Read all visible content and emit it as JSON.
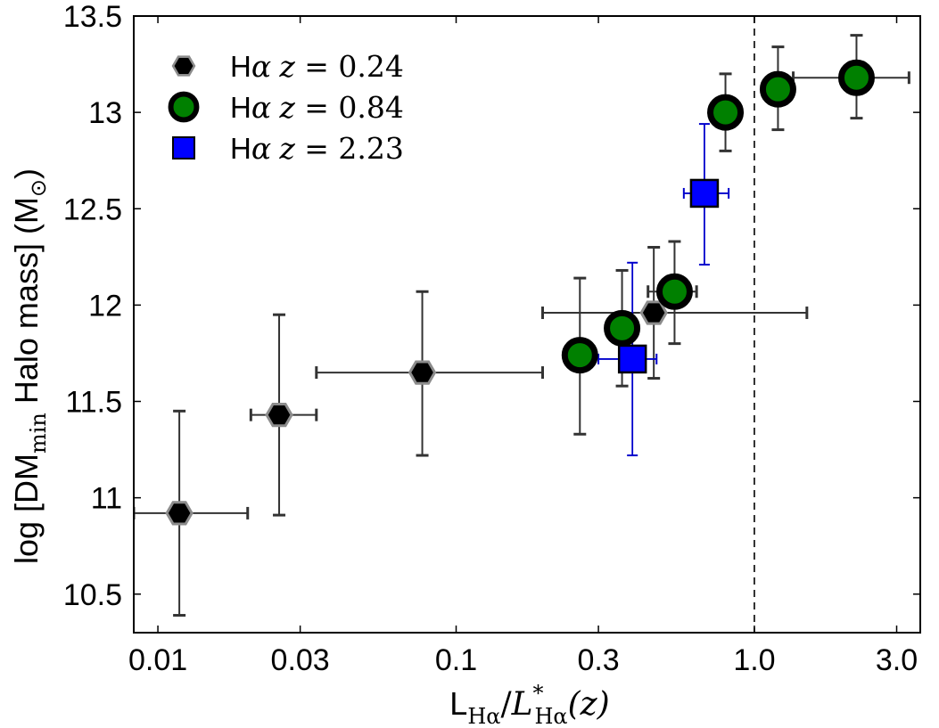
{
  "chart_data": {
    "type": "scatter",
    "xscale": "log",
    "xlim": [
      0.0083,
      3.6
    ],
    "ylim": [
      10.3,
      13.5
    ],
    "x_ticks": [
      0.01,
      0.03,
      0.1,
      0.3,
      1.0,
      3.0
    ],
    "x_tick_labels": [
      "0.01",
      "0.03",
      "0.1",
      "0.3",
      "1.0",
      "3.0"
    ],
    "y_ticks": [
      10.5,
      11,
      11.5,
      12,
      12.5,
      13,
      13.5
    ],
    "y_tick_labels": [
      "10.5",
      "11",
      "11.5",
      "12",
      "12.5",
      "13",
      "13.5"
    ],
    "xlabel": {
      "main": "L",
      "sub": "Hα",
      "slash": "/",
      "math": "L",
      "sup": "*",
      "sub2": "Hα",
      "arg": "(z)"
    },
    "ylabel": {
      "pre": "log [DM",
      "sub": "min",
      "mid": " Halo mass] (M",
      "sub2": "⊙",
      "post": ")"
    },
    "reference_line": {
      "x": 1.0,
      "style": "dashed"
    },
    "legend_position": "top-left",
    "series": [
      {
        "name": "Hα z = 0.24",
        "legend": {
          "prefix": "H",
          "greek": "α",
          "z": "z",
          "eq": " = ",
          "value": "0.24"
        },
        "marker": "hexagon",
        "color": "#000000",
        "edge": "#8c8c8c",
        "errcolor": "#333333",
        "points": [
          {
            "x": 0.0118,
            "y": 10.92,
            "xlo": 0.0083,
            "xhi": 0.02,
            "ylo": 10.39,
            "yhi": 11.45
          },
          {
            "x": 0.0255,
            "y": 11.43,
            "xlo": 0.0205,
            "xhi": 0.034,
            "ylo": 10.91,
            "yhi": 11.95
          },
          {
            "x": 0.077,
            "y": 11.65,
            "xlo": 0.034,
            "xhi": 0.195,
            "ylo": 11.22,
            "yhi": 12.07
          },
          {
            "x": 0.46,
            "y": 11.96,
            "xlo": 0.195,
            "xhi": 1.5,
            "ylo": 11.62,
            "yhi": 12.3
          }
        ]
      },
      {
        "name": "Hα z = 0.84",
        "legend": {
          "prefix": "H",
          "greek": "α",
          "z": "z",
          "eq": " = ",
          "value": "0.84"
        },
        "marker": "circle",
        "color": "#008000",
        "edge": "#000000",
        "errcolor": "#333333",
        "points": [
          {
            "x": 0.26,
            "y": 11.74,
            "xlo": 0.25,
            "xhi": 0.27,
            "ylo": 11.33,
            "yhi": 12.14
          },
          {
            "x": 0.36,
            "y": 11.88,
            "xlo": 0.35,
            "xhi": 0.37,
            "ylo": 11.58,
            "yhi": 12.18
          },
          {
            "x": 0.54,
            "y": 12.07,
            "xlo": 0.44,
            "xhi": 0.64,
            "ylo": 11.8,
            "yhi": 12.33
          },
          {
            "x": 0.8,
            "y": 13.0,
            "xlo": 0.75,
            "xhi": 0.85,
            "ylo": 12.8,
            "yhi": 13.2
          },
          {
            "x": 1.2,
            "y": 13.12,
            "xlo": 1.15,
            "xhi": 1.25,
            "ylo": 12.91,
            "yhi": 13.34
          },
          {
            "x": 2.2,
            "y": 13.18,
            "xlo": 1.35,
            "xhi": 3.3,
            "ylo": 12.97,
            "yhi": 13.4
          }
        ]
      },
      {
        "name": "Hα z = 2.23",
        "legend": {
          "prefix": "H",
          "greek": "α",
          "z": "z",
          "eq": " = ",
          "value": "2.23"
        },
        "marker": "square",
        "color": "#0000ff",
        "edge": "#000000",
        "errcolor": "#0000cc",
        "points": [
          {
            "x": 0.39,
            "y": 11.72,
            "xlo": 0.3,
            "xhi": 0.47,
            "ylo": 11.22,
            "yhi": 12.22
          },
          {
            "x": 0.68,
            "y": 12.58,
            "xlo": 0.58,
            "xhi": 0.82,
            "ylo": 12.21,
            "yhi": 12.94
          }
        ]
      }
    ]
  }
}
